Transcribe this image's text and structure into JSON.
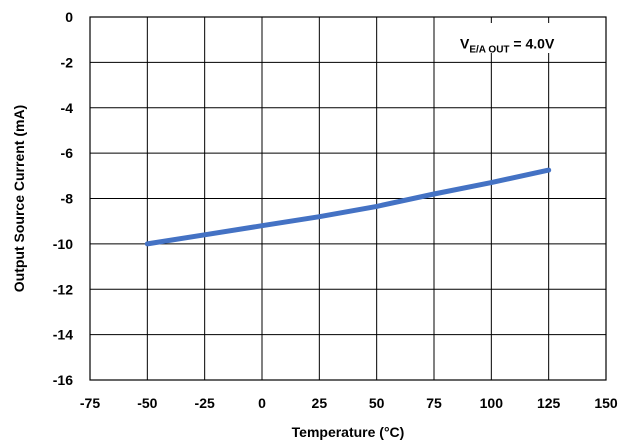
{
  "chart_data": {
    "type": "line",
    "title": "",
    "xlabel": "Temperature (°C)",
    "ylabel": "Output Source Current (mA)",
    "xlim": [
      -75,
      150
    ],
    "ylim": [
      -16,
      0
    ],
    "x_ticks": [
      -75,
      -50,
      -25,
      0,
      25,
      50,
      75,
      100,
      125,
      150
    ],
    "y_ticks": [
      0,
      -2,
      -4,
      -6,
      -8,
      -10,
      -12,
      -14,
      -16
    ],
    "x_tick_labels": [
      "-75",
      "-50",
      "-25",
      "0",
      "25",
      "50",
      "75",
      "100",
      "125",
      "150"
    ],
    "y_tick_labels": [
      "0",
      "-2",
      "-4",
      "-6",
      "-8",
      "-10",
      "-12",
      "-14",
      "-16"
    ],
    "grid": true,
    "legend": "none",
    "annotation": {
      "prefix": "V",
      "subscript": "E/A OUT",
      "suffix": " = 4.0V",
      "placement": "top-right"
    },
    "series": [
      {
        "color": "#4472c4",
        "x": [
          -50,
          -25,
          0,
          25,
          50,
          75,
          100,
          125
        ],
        "y": [
          -10.0,
          -9.6,
          -9.2,
          -8.8,
          -8.35,
          -7.8,
          -7.3,
          -6.75
        ]
      }
    ]
  }
}
